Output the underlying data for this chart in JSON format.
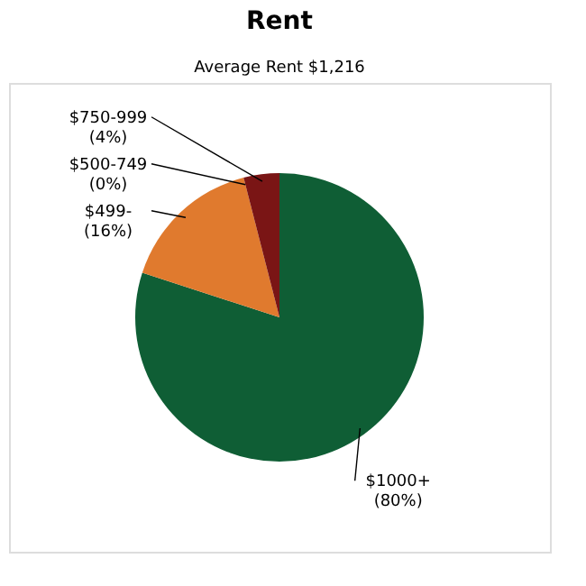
{
  "chart_data": {
    "type": "pie",
    "title": "Rent",
    "subtitle": "Average Rent  $1,216",
    "categories": [
      "$1000+",
      "$499-",
      "$500-749",
      "$750-999"
    ],
    "values": [
      80,
      16,
      0,
      4
    ],
    "value_labels": [
      "(80%)",
      "(16%)",
      "(0%)",
      "(4%)"
    ],
    "colors": [
      "#0f5e35",
      "#e07a2e",
      "#b04a1a",
      "#7a1515"
    ],
    "legend": false
  }
}
